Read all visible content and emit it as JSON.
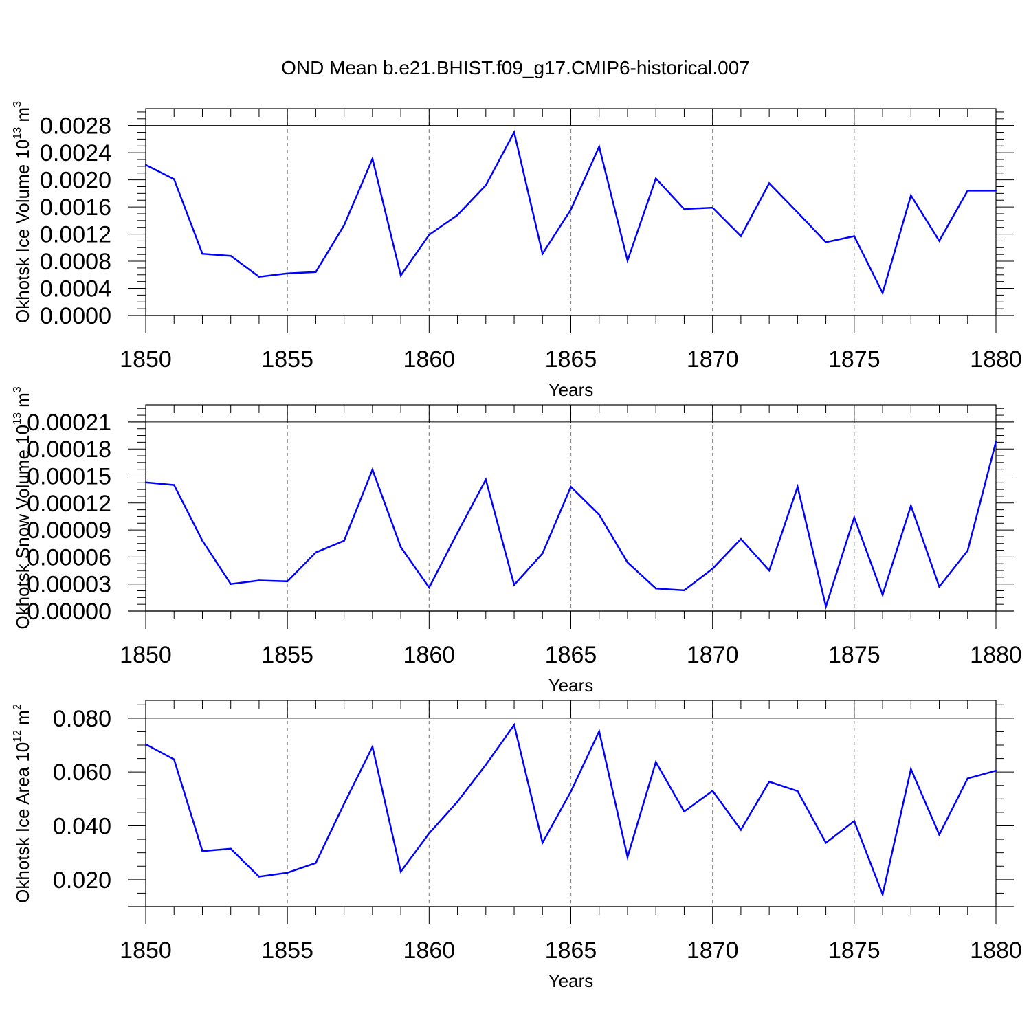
{
  "title": "OND Mean b.e21.BHIST.f09_g17.CMIP6-historical.007",
  "colors": {
    "line": "#0000ff",
    "frame": "#000000",
    "grid": "#888888"
  },
  "chart_data": [
    {
      "type": "line",
      "ylabel": {
        "main": "Okhotsk Ice Volume 10",
        "exp": "13",
        "unit": " m",
        "unit_exp": "3"
      },
      "xlabel": "Years",
      "xlim": [
        1850,
        1880
      ],
      "ylim": [
        0.0,
        0.0028
      ],
      "xticks": [
        1850,
        1855,
        1860,
        1865,
        1870,
        1875,
        1880
      ],
      "xtick_labels": [
        "1850",
        "1855",
        "1860",
        "1865",
        "1870",
        "1875",
        "1880"
      ],
      "yticks": [
        0.0,
        0.0004,
        0.0008,
        0.0012,
        0.0016,
        0.002,
        0.0024,
        0.0028
      ],
      "ytick_labels": [
        "0.0000",
        "0.0004",
        "0.0008",
        "0.0012",
        "0.0016",
        "0.0020",
        "0.0024",
        "0.0028"
      ],
      "grid": "vertical dashed at major x ticks",
      "x": [
        1850,
        1851,
        1852,
        1853,
        1854,
        1855,
        1856,
        1857,
        1858,
        1859,
        1860,
        1861,
        1862,
        1863,
        1864,
        1865,
        1866,
        1867,
        1868,
        1869,
        1870,
        1871,
        1872,
        1873,
        1874,
        1875,
        1876,
        1877,
        1878,
        1879,
        1880
      ],
      "y": [
        0.00222,
        0.00201,
        0.00091,
        0.00088,
        0.00057,
        0.00062,
        0.00064,
        0.00133,
        0.00231,
        0.00059,
        0.00119,
        0.00148,
        0.00192,
        0.0027,
        0.00091,
        0.00156,
        0.00249,
        0.00081,
        0.00202,
        0.00157,
        0.00159,
        0.00117,
        0.00195,
        0.00152,
        0.00108,
        0.00117,
        0.00033,
        0.00177,
        0.0011,
        0.00184,
        0.00184
      ]
    },
    {
      "type": "line",
      "ylabel": {
        "main": "Okhotsk Snow Volume 10",
        "exp": "13",
        "unit": " m",
        "unit_exp": "3"
      },
      "xlabel": "Years",
      "xlim": [
        1850,
        1880
      ],
      "ylim": [
        0.0,
        0.00021
      ],
      "xticks": [
        1850,
        1855,
        1860,
        1865,
        1870,
        1875,
        1880
      ],
      "xtick_labels": [
        "1850",
        "1855",
        "1860",
        "1865",
        "1870",
        "1875",
        "1880"
      ],
      "yticks": [
        0.0,
        3e-05,
        6e-05,
        9e-05,
        0.00012,
        0.00015,
        0.00018,
        0.00021
      ],
      "ytick_labels": [
        "0.00000",
        "0.00003",
        "0.00006",
        "0.00009",
        "0.00012",
        "0.00015",
        "0.00018",
        "0.00021"
      ],
      "grid": "vertical dashed at major x ticks",
      "x": [
        1850,
        1851,
        1852,
        1853,
        1854,
        1855,
        1856,
        1857,
        1858,
        1859,
        1860,
        1861,
        1862,
        1863,
        1864,
        1865,
        1866,
        1867,
        1868,
        1869,
        1870,
        1871,
        1872,
        1873,
        1874,
        1875,
        1876,
        1877,
        1878,
        1879,
        1880
      ],
      "y": [
        0.000143,
        0.00014,
        7.8e-05,
        3e-05,
        3.4e-05,
        3.3e-05,
        6.5e-05,
        7.8e-05,
        0.000157,
        7.1e-05,
        2.6e-05,
        8.7e-05,
        0.000146,
        2.9e-05,
        6.4e-05,
        0.000138,
        0.000107,
        5.4e-05,
        2.5e-05,
        2.3e-05,
        4.7e-05,
        8e-05,
        4.5e-05,
        0.000138,
        5e-06,
        0.000104,
        1.8e-05,
        0.000117,
        2.7e-05,
        6.7e-05,
        0.000188
      ]
    },
    {
      "type": "line",
      "ylabel": {
        "main": "Okhotsk Ice Area 10",
        "exp": "12",
        "unit": " m",
        "unit_exp": "2"
      },
      "xlabel": "Years",
      "xlim": [
        1850,
        1880
      ],
      "ylim": [
        0.01,
        0.08
      ],
      "xticks": [
        1850,
        1855,
        1860,
        1865,
        1870,
        1875,
        1880
      ],
      "xtick_labels": [
        "1850",
        "1855",
        "1860",
        "1865",
        "1870",
        "1875",
        "1880"
      ],
      "yticks": [
        0.02,
        0.04,
        0.06,
        0.08
      ],
      "ytick_labels": [
        "0.020",
        "0.040",
        "0.060",
        "0.080"
      ],
      "grid": "vertical dashed at major x ticks",
      "x": [
        1850,
        1851,
        1852,
        1853,
        1854,
        1855,
        1856,
        1857,
        1858,
        1859,
        1860,
        1861,
        1862,
        1863,
        1864,
        1865,
        1866,
        1867,
        1868,
        1869,
        1870,
        1871,
        1872,
        1873,
        1874,
        1875,
        1876,
        1877,
        1878,
        1879,
        1880
      ],
      "y": [
        0.0703,
        0.0647,
        0.0306,
        0.0315,
        0.0211,
        0.0226,
        0.0262,
        0.0482,
        0.0694,
        0.023,
        0.0372,
        0.049,
        0.0627,
        0.0775,
        0.0337,
        0.0527,
        0.0751,
        0.0284,
        0.0637,
        0.0453,
        0.053,
        0.0385,
        0.0564,
        0.0529,
        0.0337,
        0.0418,
        0.0145,
        0.0611,
        0.0367,
        0.0576,
        0.0605
      ]
    }
  ]
}
